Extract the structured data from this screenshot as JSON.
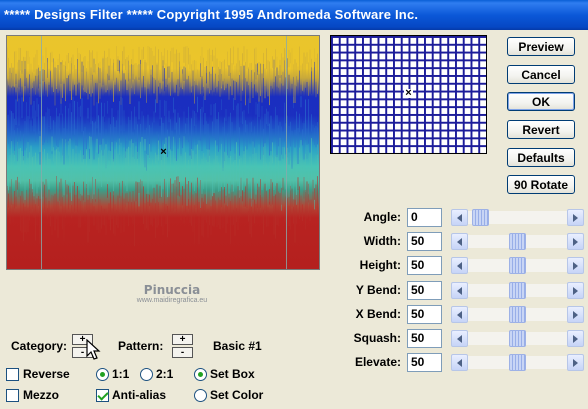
{
  "window": {
    "title": "***** Designs Filter *****  Copyright 1995 Andromeda Software Inc."
  },
  "buttons": {
    "preview": "Preview",
    "cancel": "Cancel",
    "ok": "OK",
    "revert": "Revert",
    "defaults": "Defaults",
    "rotate": "90 Rotate"
  },
  "params": [
    {
      "label": "Angle:",
      "value": "0",
      "level": 0.05
    },
    {
      "label": "Width:",
      "value": "50",
      "level": 0.5
    },
    {
      "label": "Height:",
      "value": "50",
      "level": 0.5
    },
    {
      "label": "Y Bend:",
      "value": "50",
      "level": 0.5
    },
    {
      "label": "X Bend:",
      "value": "50",
      "level": 0.5
    },
    {
      "label": "Squash:",
      "value": "50",
      "level": 0.5
    },
    {
      "label": "Elevate:",
      "value": "50",
      "level": 0.5
    }
  ],
  "watermark": {
    "name": "Pinuccia",
    "site": "www.maidiregrafica.eu"
  },
  "category": {
    "label": "Category:",
    "plus": "+",
    "minus": "-"
  },
  "pattern": {
    "label": "Pattern:",
    "plus": "+",
    "minus": "-",
    "value": "Basic #1"
  },
  "options": {
    "reverse": {
      "label": "Reverse",
      "checked": false
    },
    "mezzo": {
      "label": "Mezzo",
      "checked": false
    },
    "ratio_1_1": {
      "label": "1:1",
      "selected": true
    },
    "ratio_2_1": {
      "label": "2:1",
      "selected": false
    },
    "anti_alias": {
      "label": "Anti-alias",
      "checked": true
    },
    "set_box": {
      "label": "Set Box",
      "selected": true
    },
    "set_color": {
      "label": "Set Color",
      "selected": false
    }
  },
  "colors": {
    "title_bar": "#0a5fd6",
    "grid_line": "#1c1c9a",
    "check_mark": "#21a121"
  },
  "preview_crosshair": "×",
  "grid_crosshair": "×"
}
